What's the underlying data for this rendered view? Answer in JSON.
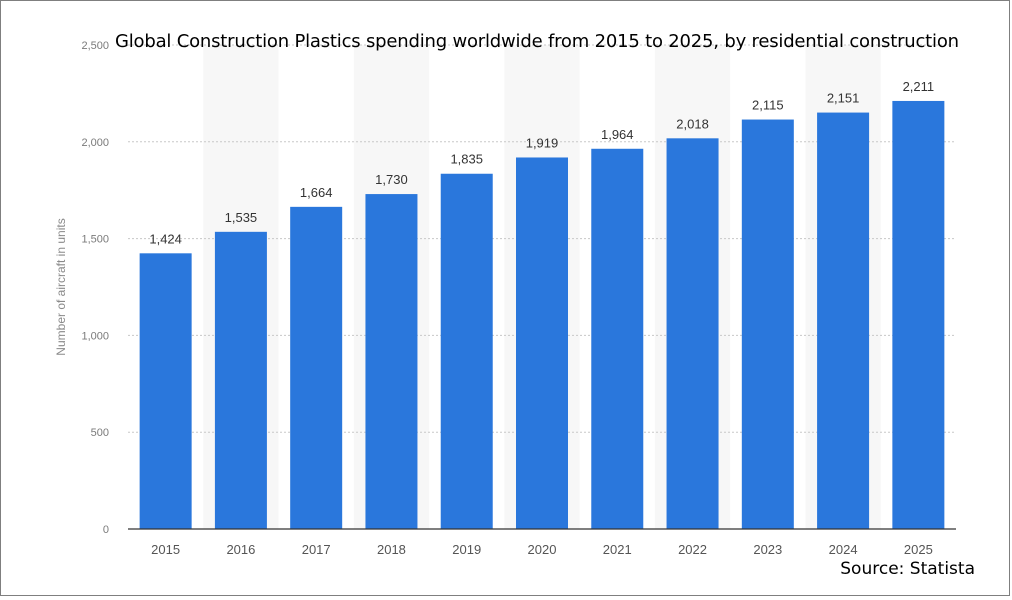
{
  "chart_data": {
    "type": "bar",
    "title": "Global Construction Plastics spending worldwide from 2015 to 2025, by residential construction",
    "ylabel": "Number of aircraft in units",
    "xlabel": "",
    "categories": [
      "2015",
      "2016",
      "2017",
      "2018",
      "2019",
      "2020",
      "2021",
      "2022",
      "2023",
      "2024",
      "2025"
    ],
    "values": [
      1424,
      1535,
      1664,
      1730,
      1835,
      1919,
      1964,
      2018,
      2115,
      2151,
      2211
    ],
    "value_labels": [
      "1,424",
      "1,535",
      "1,664",
      "1,730",
      "1,835",
      "1,919",
      "1,964",
      "2,018",
      "2,115",
      "2,151",
      "2,211"
    ],
    "yticks": [
      0,
      500,
      1000,
      1500,
      2000,
      2500
    ],
    "ytick_labels": [
      "0",
      "500",
      "1,000",
      "1,500",
      "2,000",
      "2,500"
    ],
    "ylim": [
      0,
      2500
    ],
    "grid": true,
    "bar_color": "#2a77dc",
    "source": "Source: Statista"
  }
}
